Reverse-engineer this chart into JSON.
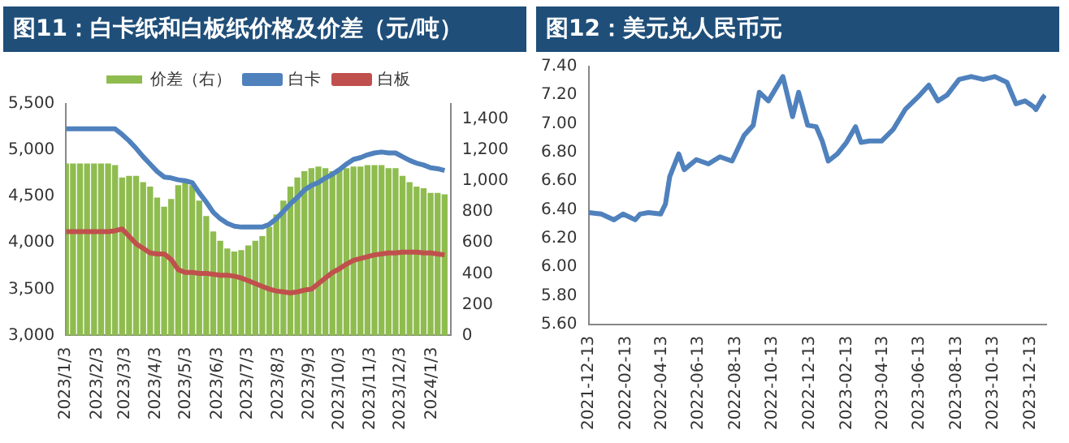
{
  "chart_data": [
    {
      "type": "bar",
      "title": "图11：白卡纸和白板纸价格及价差（元/吨）",
      "legend": "top",
      "x": [
        "2023-01-03",
        "2023-01-10",
        "2023-01-17",
        "2023-01-24",
        "2023-01-31",
        "2023-02-07",
        "2023-02-14",
        "2023-02-21",
        "2023-02-28",
        "2023-03-07",
        "2023-03-14",
        "2023-03-21",
        "2023-03-28",
        "2023-04-04",
        "2023-04-11",
        "2023-04-18",
        "2023-04-25",
        "2023-05-02",
        "2023-05-09",
        "2023-05-16",
        "2023-05-23",
        "2023-05-30",
        "2023-06-06",
        "2023-06-13",
        "2023-06-20",
        "2023-06-27",
        "2023-07-04",
        "2023-07-11",
        "2023-07-18",
        "2023-07-25",
        "2023-08-01",
        "2023-08-08",
        "2023-08-15",
        "2023-08-22",
        "2023-08-29",
        "2023-09-05",
        "2023-09-12",
        "2023-09-19",
        "2023-09-26",
        "2023-10-03",
        "2023-10-10",
        "2023-10-17",
        "2023-10-24",
        "2023-10-31",
        "2023-11-07",
        "2023-11-14",
        "2023-11-21",
        "2023-11-28",
        "2023-12-05",
        "2023-12-12",
        "2023-12-19",
        "2023-12-26",
        "2024-01-02",
        "2024-01-09",
        "2024-01-16"
      ],
      "series": [
        {
          "name": "价差（右）",
          "axis": "y2",
          "color": "#8fbc4f",
          "values": [
            1110,
            1110,
            1110,
            1110,
            1110,
            1110,
            1110,
            1100,
            1020,
            1030,
            1030,
            990,
            960,
            890,
            830,
            880,
            970,
            990,
            970,
            870,
            770,
            670,
            610,
            560,
            540,
            550,
            580,
            610,
            640,
            700,
            780,
            870,
            960,
            1020,
            1060,
            1080,
            1090,
            1080,
            1060,
            1070,
            1080,
            1090,
            1090,
            1100,
            1100,
            1100,
            1080,
            1080,
            1030,
            990,
            960,
            950,
            920,
            920,
            910
          ]
        },
        {
          "name": "白卡",
          "type": "line",
          "color": "#4f81bd",
          "values": [
            5230,
            5230,
            5230,
            5230,
            5230,
            5230,
            5230,
            5230,
            5170,
            5100,
            5020,
            4930,
            4850,
            4770,
            4710,
            4700,
            4680,
            4670,
            4650,
            4540,
            4440,
            4330,
            4260,
            4210,
            4180,
            4170,
            4170,
            4170,
            4170,
            4200,
            4260,
            4340,
            4420,
            4490,
            4570,
            4620,
            4650,
            4700,
            4740,
            4790,
            4850,
            4900,
            4920,
            4950,
            4970,
            4980,
            4970,
            4970,
            4930,
            4890,
            4860,
            4840,
            4810,
            4800,
            4780
          ]
        },
        {
          "name": "白板",
          "type": "line",
          "color": "#c0504d",
          "values": [
            4120,
            4120,
            4120,
            4120,
            4120,
            4120,
            4120,
            4130,
            4150,
            4070,
            3990,
            3940,
            3890,
            3880,
            3880,
            3820,
            3710,
            3680,
            3680,
            3670,
            3670,
            3660,
            3650,
            3650,
            3640,
            3620,
            3590,
            3560,
            3530,
            3500,
            3480,
            3470,
            3460,
            3470,
            3490,
            3500,
            3560,
            3620,
            3680,
            3720,
            3770,
            3810,
            3830,
            3850,
            3870,
            3880,
            3890,
            3890,
            3900,
            3900,
            3900,
            3890,
            3890,
            3880,
            3870
          ]
        }
      ],
      "xlim": [
        "2023-01-03",
        "2024-01-22"
      ],
      "xticks": [
        {
          "value": "2023-01-03",
          "label": "2023/1/3"
        },
        {
          "value": "2023-02-03",
          "label": "2023/2/3"
        },
        {
          "value": "2023-03-03",
          "label": "2023/3/3"
        },
        {
          "value": "2023-04-03",
          "label": "2023/4/3"
        },
        {
          "value": "2023-05-03",
          "label": "2023/5/3"
        },
        {
          "value": "2023-06-03",
          "label": "2023/6/3"
        },
        {
          "value": "2023-07-03",
          "label": "2023/7/3"
        },
        {
          "value": "2023-08-03",
          "label": "2023/8/3"
        },
        {
          "value": "2023-09-03",
          "label": "2023/9/3"
        },
        {
          "value": "2023-10-03",
          "label": "2023/10/3"
        },
        {
          "value": "2023-11-03",
          "label": "2023/11/3"
        },
        {
          "value": "2023-12-03",
          "label": "2023/12/3"
        },
        {
          "value": "2024-01-03",
          "label": "2024/1/3"
        }
      ],
      "ylim": [
        3000,
        5500
      ],
      "yticks": [
        {
          "value": 3000,
          "label": "3,000"
        },
        {
          "value": 3500,
          "label": "3,500"
        },
        {
          "value": 4000,
          "label": "4,000"
        },
        {
          "value": 4500,
          "label": "4,500"
        },
        {
          "value": 5000,
          "label": "5,000"
        },
        {
          "value": 5500,
          "label": "5,500"
        }
      ],
      "y2lim": [
        0,
        1500
      ],
      "y2ticks": [
        0,
        200,
        400,
        600,
        800,
        {
          "value": 1000,
          "label": "1,000"
        },
        {
          "value": 1200,
          "label": "1,200"
        },
        {
          "value": 1400,
          "label": "1,400"
        }
      ]
    },
    {
      "type": "line",
      "title": "图12：美元兑人民币元",
      "x": [
        "2021-12-13",
        "2022-01-03",
        "2022-01-24",
        "2022-02-08",
        "2022-02-28",
        "2022-03-08",
        "2022-03-22",
        "2022-04-11",
        "2022-04-19",
        "2022-04-26",
        "2022-05-11",
        "2022-05-20",
        "2022-06-09",
        "2022-06-29",
        "2022-07-18",
        "2022-08-07",
        "2022-08-27",
        "2022-09-11",
        "2022-09-21",
        "2022-10-06",
        "2022-10-30",
        "2022-11-15",
        "2022-11-25",
        "2022-12-10",
        "2022-12-24",
        "2023-01-03",
        "2023-01-13",
        "2023-01-28",
        "2023-02-12",
        "2023-02-27",
        "2023-03-08",
        "2023-03-22",
        "2023-04-11",
        "2023-04-30",
        "2023-05-20",
        "2023-06-13",
        "2023-06-28",
        "2023-07-13",
        "2023-07-28",
        "2023-08-17",
        "2023-09-06",
        "2023-09-26",
        "2023-10-15",
        "2023-11-04",
        "2023-11-19",
        "2023-12-04",
        "2023-12-18",
        "2023-12-22",
        "2024-01-02",
        "2024-01-06"
      ],
      "series": [
        {
          "color": "#4f81bd",
          "values": [
            6.38,
            6.37,
            6.33,
            6.37,
            6.33,
            6.37,
            6.38,
            6.37,
            6.44,
            6.63,
            6.79,
            6.68,
            6.75,
            6.72,
            6.77,
            6.74,
            6.92,
            6.99,
            7.22,
            7.16,
            7.33,
            7.05,
            7.22,
            6.99,
            6.98,
            6.88,
            6.74,
            6.79,
            6.87,
            6.98,
            6.87,
            6.88,
            6.88,
            6.96,
            7.1,
            7.2,
            7.27,
            7.16,
            7.2,
            7.31,
            7.33,
            7.31,
            7.33,
            7.29,
            7.14,
            7.16,
            7.12,
            7.1,
            7.18,
            7.2
          ]
        }
      ],
      "xlim": [
        "2021-12-13",
        "2024-01-08"
      ],
      "xticks": [
        "2021-12-13",
        "2022-02-13",
        "2022-04-13",
        "2022-06-13",
        "2022-08-13",
        "2022-10-13",
        "2022-12-13",
        "2023-02-13",
        "2023-04-13",
        "2023-06-13",
        "2023-08-13",
        "2023-10-13",
        "2023-12-13"
      ],
      "ylim": [
        5.6,
        7.4
      ],
      "yticks": [
        {
          "value": 5.6,
          "label": "5.60"
        },
        {
          "value": 5.8,
          "label": "5.80"
        },
        {
          "value": 6,
          "label": "6.00"
        },
        {
          "value": 6.2,
          "label": "6.20"
        },
        {
          "value": 6.4,
          "label": "6.40"
        },
        {
          "value": 6.6,
          "label": "6.60"
        },
        {
          "value": 6.8,
          "label": "6.80"
        },
        {
          "value": 7,
          "label": "7.00"
        },
        {
          "value": 7.2,
          "label": "7.20"
        },
        {
          "value": 7.4,
          "label": "7.40"
        }
      ]
    }
  ]
}
